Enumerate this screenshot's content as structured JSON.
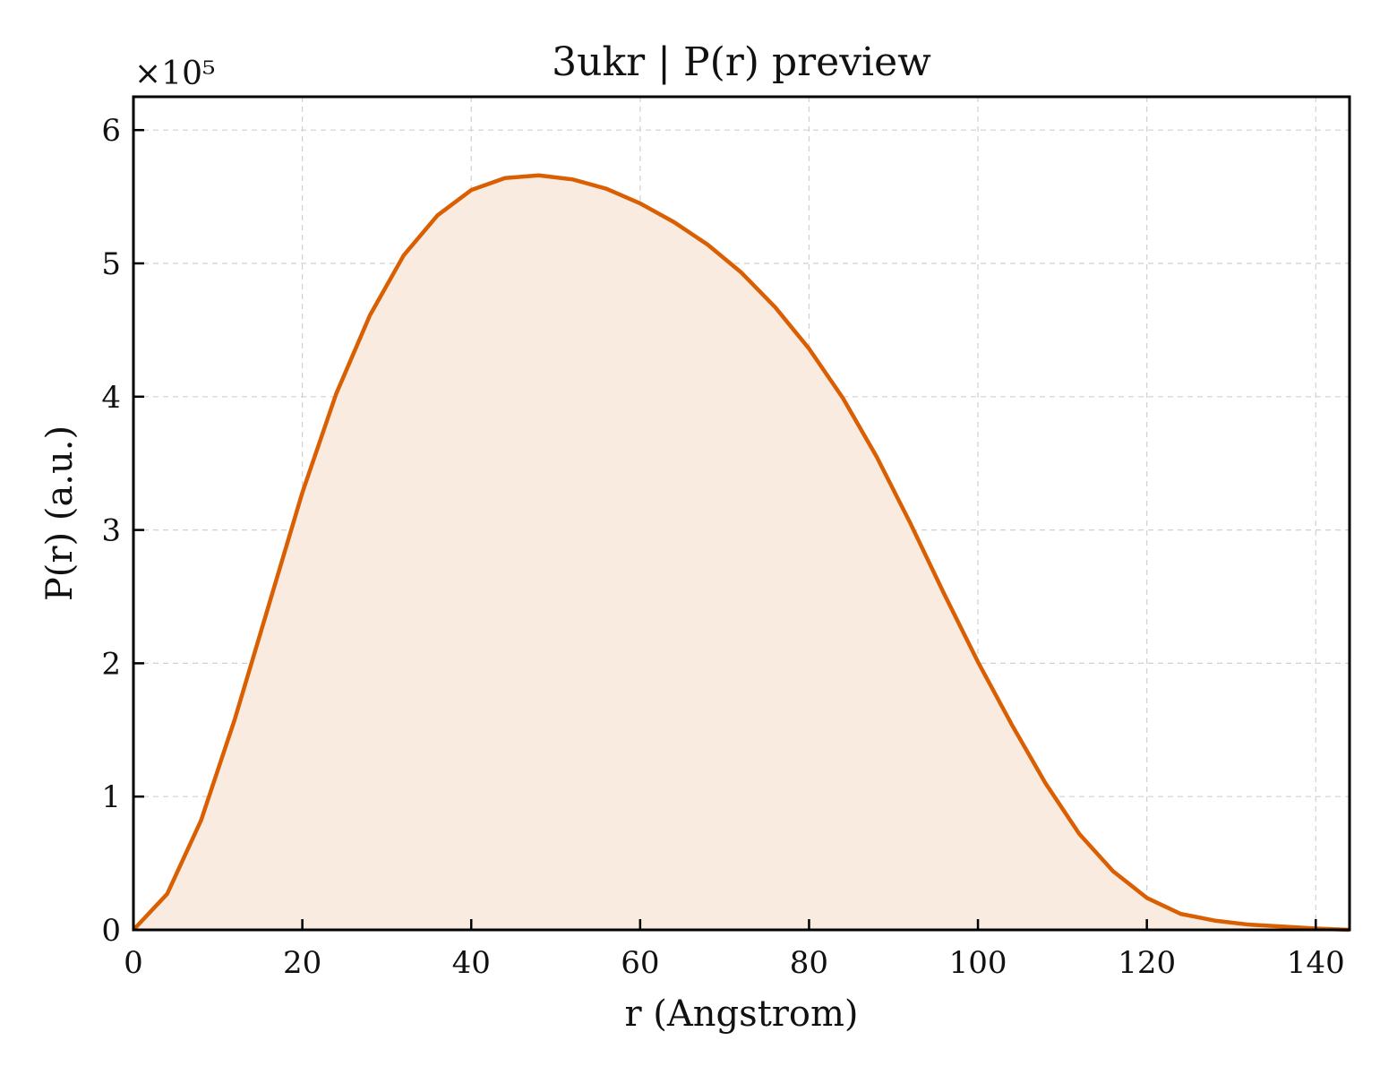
{
  "chart_data": {
    "type": "area",
    "title": "3ukr | P(r) preview",
    "xlabel": "r (Angstrom)",
    "ylabel": "P(r) (a.u.)",
    "y_offset_label": "×10⁵",
    "xlim": [
      0,
      144
    ],
    "ylim": [
      0,
      6.25
    ],
    "y_scale_multiplier": 100000,
    "xticks": [
      0,
      20,
      40,
      60,
      80,
      100,
      120,
      140
    ],
    "yticks": [
      0,
      1,
      2,
      3,
      4,
      5,
      6
    ],
    "grid": true,
    "line_color": "#d95f02",
    "fill_color": "#f9ebe0",
    "series": [
      {
        "x": [
          0,
          4,
          8,
          12,
          16,
          20,
          24,
          28,
          32,
          36,
          40,
          44,
          48,
          52,
          56,
          60,
          64,
          68,
          72,
          76,
          80,
          84,
          88,
          92,
          96,
          100,
          104,
          108,
          112,
          116,
          120,
          124,
          128,
          132,
          136,
          140,
          144
        ],
        "y": [
          0.0,
          0.27,
          0.82,
          1.58,
          2.43,
          3.28,
          4.02,
          4.61,
          5.06,
          5.36,
          5.55,
          5.64,
          5.66,
          5.63,
          5.56,
          5.45,
          5.31,
          5.14,
          4.93,
          4.67,
          4.36,
          3.99,
          3.55,
          3.05,
          2.52,
          2.01,
          1.54,
          1.1,
          0.72,
          0.44,
          0.24,
          0.12,
          0.07,
          0.04,
          0.025,
          0.01,
          0.0
        ]
      }
    ]
  }
}
